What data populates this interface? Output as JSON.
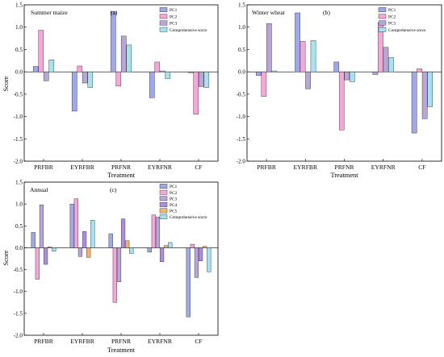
{
  "series_colors": [
    "#9fa8e8",
    "#f4a8d8",
    "#b8a6d8",
    "#ad8fe0",
    "#f5b36a",
    "#a6e2f0"
  ],
  "chart_data": [
    {
      "type": "bar",
      "panel_title": "Summer maize",
      "panel_label": "(a)",
      "xlabel": "Treatment",
      "ylabel": "Score",
      "ylim": [
        -2.0,
        1.5
      ],
      "yticks": [
        "1.5",
        "1.0",
        "0.5",
        "0.0",
        "-0.5",
        "-1.0",
        "-1.5",
        "-2.0"
      ],
      "categories": [
        "PRFBR",
        "EYRFBR",
        "PRFNR",
        "EYRFNR",
        "CF"
      ],
      "legend_position": "top-right",
      "series": [
        {
          "name": "PC1",
          "values": [
            0.12,
            -0.88,
            1.35,
            -0.58,
            -0.02
          ]
        },
        {
          "name": "PC2",
          "values": [
            0.93,
            0.13,
            -0.32,
            0.22,
            -0.95
          ]
        },
        {
          "name": "PC3",
          "values": [
            -0.2,
            -0.25,
            0.8,
            0.02,
            -0.33
          ]
        },
        {
          "name": "Comprehensive sorce",
          "values": [
            0.27,
            -0.35,
            0.6,
            -0.15,
            -0.35
          ]
        }
      ]
    },
    {
      "type": "bar",
      "panel_title": "Winter wheat",
      "panel_label": "(b)",
      "xlabel": "Treatment",
      "ylabel": "",
      "ylim": [
        -2.0,
        1.5
      ],
      "yticks": [
        "1.5",
        "1.0",
        "0.5",
        "0.0",
        "-0.5",
        "-1.0",
        "-1.5",
        "-2.0"
      ],
      "categories": [
        "PRFBR",
        "EYRFBR",
        "PRFNR",
        "EYRFNR",
        "CF"
      ],
      "legend_position": "top-right",
      "series": [
        {
          "name": "PC1",
          "values": [
            -0.08,
            1.32,
            0.22,
            -0.06,
            -1.37
          ]
        },
        {
          "name": "PC2",
          "values": [
            -0.55,
            0.68,
            -1.3,
            1.1,
            0.07
          ]
        },
        {
          "name": "PC3",
          "values": [
            1.08,
            -0.38,
            -0.18,
            0.55,
            -1.05
          ]
        },
        {
          "name": "Comprehensive sorce",
          "values": [
            0.02,
            0.7,
            -0.22,
            0.32,
            -0.78
          ]
        }
      ]
    },
    {
      "type": "bar",
      "panel_title": "Annual",
      "panel_label": "(c)",
      "xlabel": "Treatment",
      "ylabel": "Score",
      "ylim": [
        -2.0,
        1.5
      ],
      "yticks": [
        "1.5",
        "1.0",
        "0.5",
        "0.0",
        "-0.5",
        "-1.0",
        "-1.5",
        "-2.0"
      ],
      "categories": [
        "PRFBR",
        "EYRFBR",
        "PRFNR",
        "EYRFNR",
        "CF"
      ],
      "legend_position": "top-right",
      "series": [
        {
          "name": "PC1",
          "values": [
            0.35,
            1.0,
            0.32,
            -0.1,
            -1.58
          ]
        },
        {
          "name": "PC2",
          "values": [
            -0.72,
            1.12,
            -1.25,
            0.75,
            0.08
          ]
        },
        {
          "name": "PC3",
          "values": [
            0.98,
            -0.2,
            -0.78,
            0.7,
            -0.68
          ]
        },
        {
          "name": "PC4",
          "values": [
            -0.38,
            0.37,
            0.66,
            -0.32,
            -0.3
          ]
        },
        {
          "name": "PC5",
          "values": [
            0.02,
            -0.22,
            0.16,
            0.05,
            0.03
          ]
        },
        {
          "name": "Comprehensive sorce",
          "values": [
            -0.08,
            0.63,
            -0.13,
            0.12,
            -0.55
          ]
        }
      ]
    }
  ]
}
